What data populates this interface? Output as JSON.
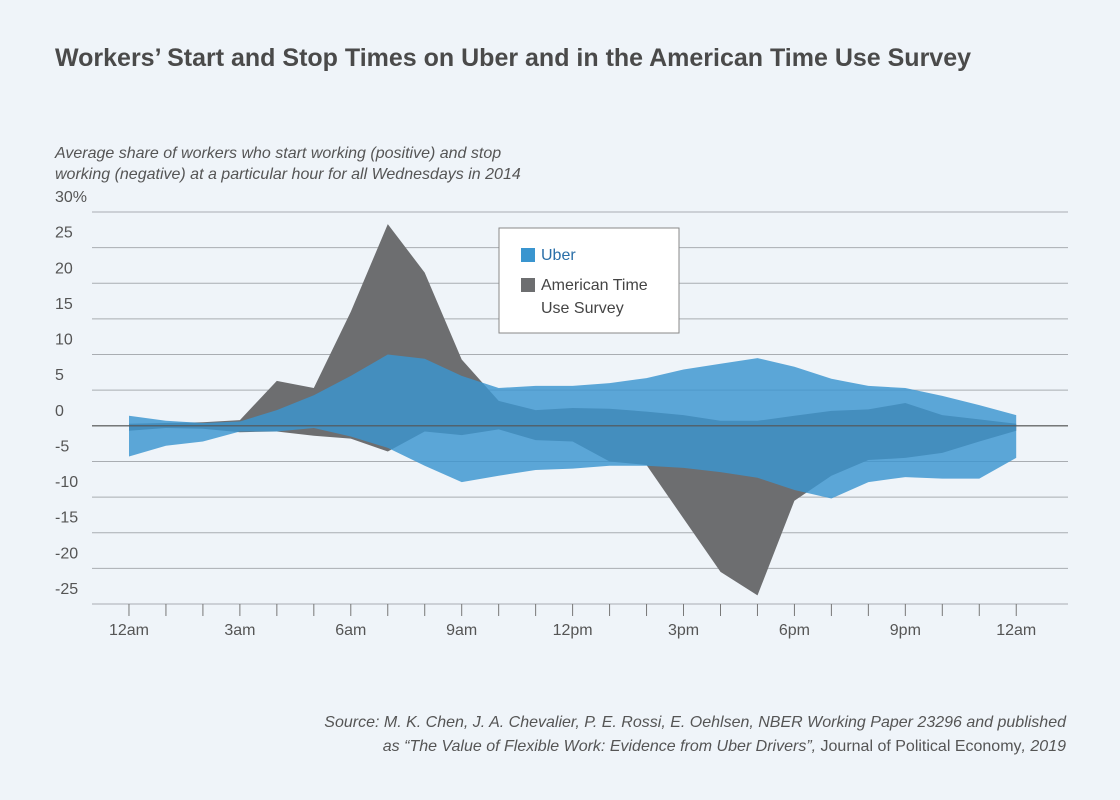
{
  "chart_data": {
    "type": "band",
    "title": "Workers’ Start and Stop Times on Uber and in the American Time Use Survey",
    "subtitle": [
      "Average share of workers who start working (positive) and stop",
      "working (negative) at a particular hour for all Wednesdays in 2014"
    ],
    "x": [
      0,
      1,
      2,
      3,
      4,
      5,
      6,
      7,
      8,
      9,
      10,
      11,
      12,
      13,
      14,
      15,
      16,
      17,
      18,
      19,
      20,
      21,
      22,
      23,
      24
    ],
    "xlim": [
      -1,
      25.4
    ],
    "xticks": [
      {
        "value": 0,
        "label": "12am"
      },
      {
        "value": 3,
        "label": "3am"
      },
      {
        "value": 6,
        "label": "6am"
      },
      {
        "value": 9,
        "label": "9am"
      },
      {
        "value": 12,
        "label": "12pm"
      },
      {
        "value": 15,
        "label": "3pm"
      },
      {
        "value": 18,
        "label": "6pm"
      },
      {
        "value": 21,
        "label": "9pm"
      },
      {
        "value": 24,
        "label": "12am"
      }
    ],
    "ylim": [
      -25,
      30
    ],
    "yticks": [
      {
        "value": 30,
        "label": "30%"
      },
      25,
      20,
      15,
      10,
      5,
      0,
      -5,
      -10,
      -15,
      -20,
      -25
    ],
    "grid": true,
    "series": [
      {
        "name": "American Time Use Survey",
        "color": "#6d6e70",
        "values": [
          0.3,
          0.4,
          0.5,
          0.8,
          6.3,
          5.3,
          16,
          28.3,
          21.5,
          9.3,
          3.5,
          2.2,
          2.5,
          2.4,
          2,
          1.5,
          0.7,
          0.7,
          1.4,
          2.1,
          2.3,
          3.2,
          1.5,
          0.9,
          0.3
        ],
        "stop_values": [
          -0.7,
          -0.3,
          -0.4,
          -0.9,
          -0.8,
          -1.4,
          -1.8,
          -3.6,
          -0.8,
          -1.3,
          -0.5,
          -2,
          -2.2,
          -5,
          -5.5,
          -13,
          -20.5,
          -23.8,
          -10.5,
          -7,
          -4.8,
          -4.5,
          -3.8,
          -2.2,
          -0.7
        ]
      },
      {
        "name": "Uber",
        "color": "#3a95cf",
        "values": [
          1.4,
          0.7,
          0.4,
          0.6,
          2.2,
          4.3,
          7,
          10,
          9.4,
          7,
          5.3,
          5.6,
          5.6,
          6,
          6.7,
          7.9,
          8.7,
          9.5,
          8.3,
          6.6,
          5.6,
          5.3,
          4.2,
          2.9,
          1.5
        ],
        "stop_values": [
          -4.3,
          -2.8,
          -2.2,
          -0.8,
          -0.8,
          -0.3,
          -1.5,
          -3.1,
          -5.6,
          -7.9,
          -7,
          -6.2,
          -6,
          -5.6,
          -5.6,
          -5.9,
          -6.5,
          -7.3,
          -9,
          -10.2,
          -7.9,
          -7.2,
          -7.4,
          -7.4,
          -4.5
        ]
      }
    ],
    "source": [
      "Source: M. K. Chen, J. A. Chevalier, P. E. Rossi, E. Oehlsen, NBER Working Paper 23296 and published",
      "as “The Value of Flexible Work: Evidence from Uber Drivers”, ",
      "Journal of Political Economy",
      ", 2019"
    ]
  }
}
